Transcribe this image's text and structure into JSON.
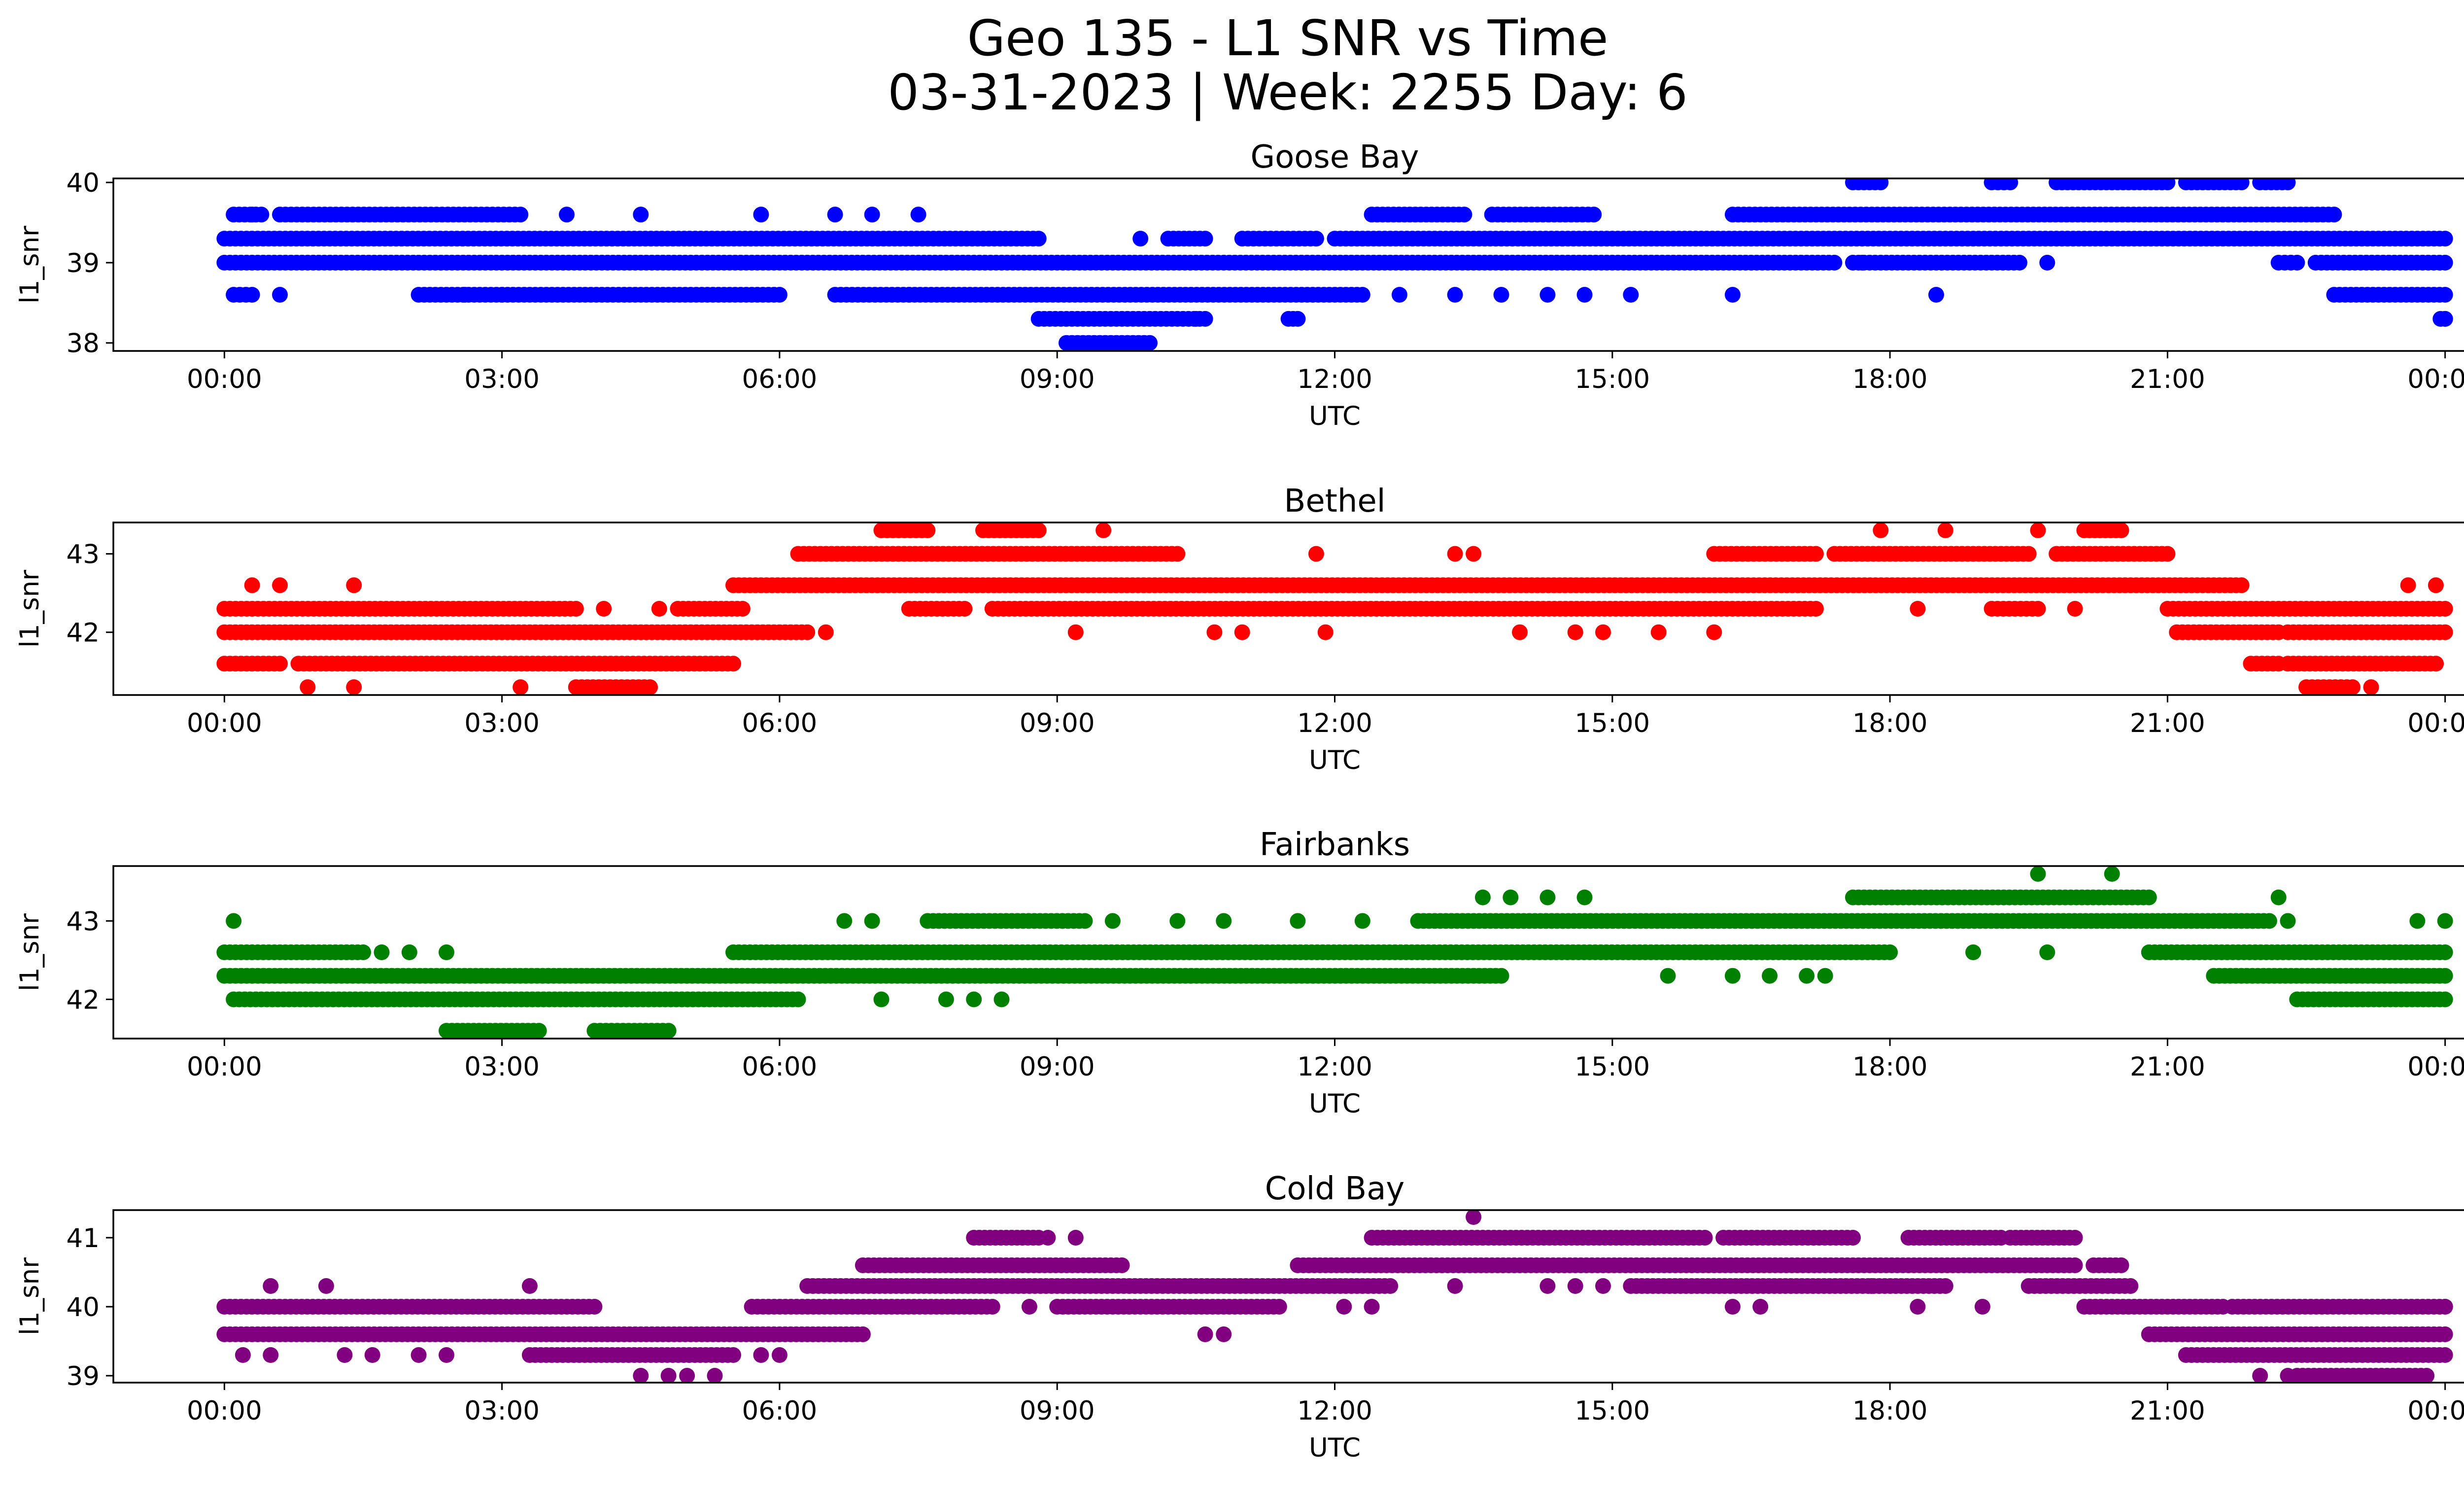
{
  "figure": {
    "title_line1": "Geo 135 - L1 SNR vs Time",
    "title_line2": "03-31-2023 | Week: 2255 Day: 6"
  },
  "chart_data": [
    {
      "type": "scatter",
      "title": "Goose Bay",
      "xlabel": "UTC",
      "ylabel": "l1_snr",
      "color": "#0000ff",
      "x_unit": "hours UTC",
      "xlim": [
        -1.2,
        25.2
      ],
      "ylim": [
        37.9,
        40.05
      ],
      "xticks": [
        0,
        3,
        6,
        9,
        12,
        15,
        18,
        21,
        24
      ],
      "xtick_labels": [
        "00:00",
        "03:00",
        "06:00",
        "09:00",
        "12:00",
        "15:00",
        "18:00",
        "21:00",
        "00:00"
      ],
      "yticks": [
        38,
        39,
        40
      ],
      "ytick_labels": [
        "38",
        "39",
        "40"
      ],
      "bands": [
        {
          "y": 40.0,
          "segments": [
            [
              17.6,
              17.9
            ],
            [
              19.1,
              19.3
            ],
            [
              19.8,
              21.0
            ],
            [
              21.2,
              21.8
            ],
            [
              22.0,
              22.3
            ]
          ]
        },
        {
          "y": 39.6,
          "segments": [
            [
              0.1,
              0.4
            ],
            [
              0.6,
              3.2
            ],
            [
              12.4,
              13.4
            ],
            [
              13.7,
              14.8
            ],
            [
              16.3,
              22.8
            ]
          ]
        },
        {
          "y": 39.3,
          "segments": [
            [
              0.0,
              8.8
            ],
            [
              10.2,
              10.6
            ],
            [
              11.0,
              11.8
            ],
            [
              12.0,
              24.0
            ]
          ]
        },
        {
          "y": 39.0,
          "segments": [
            [
              0.0,
              17.4
            ],
            [
              17.6,
              19.4
            ],
            [
              22.2,
              22.4
            ],
            [
              22.6,
              24.0
            ]
          ]
        },
        {
          "y": 38.6,
          "segments": [
            [
              0.1,
              0.3
            ],
            [
              2.1,
              6.0
            ],
            [
              6.6,
              7.4
            ],
            [
              7.4,
              12.3
            ],
            [
              22.8,
              24.0
            ]
          ]
        },
        {
          "y": 38.3,
          "segments": [
            [
              8.8,
              10.6
            ],
            [
              11.5,
              11.6
            ],
            [
              24.0,
              24.0
            ]
          ]
        },
        {
          "y": 38.0,
          "segments": [
            [
              9.1,
              10.0
            ]
          ]
        }
      ],
      "scatter_points": [
        {
          "x": 0.3,
          "y": 39.6
        },
        {
          "x": 4.5,
          "y": 39.6
        },
        {
          "x": 3.7,
          "y": 39.6
        },
        {
          "x": 5.8,
          "y": 39.6
        },
        {
          "x": 6.6,
          "y": 39.6
        },
        {
          "x": 7.0,
          "y": 39.6
        },
        {
          "x": 7.5,
          "y": 39.6
        },
        {
          "x": 0.6,
          "y": 38.6
        },
        {
          "x": 2.6,
          "y": 38.6
        },
        {
          "x": 3.0,
          "y": 38.6
        },
        {
          "x": 12.7,
          "y": 38.6
        },
        {
          "x": 13.3,
          "y": 38.6
        },
        {
          "x": 13.8,
          "y": 38.6
        },
        {
          "x": 14.3,
          "y": 38.6
        },
        {
          "x": 14.7,
          "y": 38.6
        },
        {
          "x": 15.2,
          "y": 38.6
        },
        {
          "x": 16.3,
          "y": 38.6
        },
        {
          "x": 18.5,
          "y": 38.6
        },
        {
          "x": 9.9,
          "y": 39.3
        },
        {
          "x": 19.7,
          "y": 39.0
        },
        {
          "x": 17.7,
          "y": 39.0
        },
        {
          "x": 23.95,
          "y": 38.3
        },
        {
          "x": 10.5,
          "y": 38.3
        }
      ]
    },
    {
      "type": "scatter",
      "title": "Bethel",
      "xlabel": "UTC",
      "ylabel": "l1_snr",
      "color": "#ff0000",
      "x_unit": "hours UTC",
      "xlim": [
        -1.2,
        25.2
      ],
      "ylim": [
        41.2,
        43.4
      ],
      "xticks": [
        0,
        3,
        6,
        9,
        12,
        15,
        18,
        21,
        24
      ],
      "xtick_labels": [
        "00:00",
        "03:00",
        "06:00",
        "09:00",
        "12:00",
        "15:00",
        "18:00",
        "21:00",
        "00:00"
      ],
      "yticks": [
        42,
        43
      ],
      "ytick_labels": [
        "42",
        "43"
      ],
      "bands": [
        {
          "y": 43.3,
          "segments": [
            [
              7.1,
              7.6
            ],
            [
              8.2,
              8.8
            ],
            [
              20.1,
              20.5
            ]
          ]
        },
        {
          "y": 43.0,
          "segments": [
            [
              6.2,
              10.3
            ],
            [
              16.1,
              17.2
            ],
            [
              17.4,
              19.5
            ],
            [
              19.8,
              21.0
            ]
          ]
        },
        {
          "y": 42.6,
          "segments": [
            [
              5.5,
              21.8
            ]
          ]
        },
        {
          "y": 42.3,
          "segments": [
            [
              0.0,
              3.8
            ],
            [
              4.9,
              5.6
            ],
            [
              7.4,
              8.0
            ],
            [
              8.3,
              17.2
            ],
            [
              19.1,
              19.6
            ],
            [
              21.0,
              24.0
            ]
          ]
        },
        {
          "y": 42.0,
          "segments": [
            [
              0.0,
              6.3
            ],
            [
              21.1,
              22.2
            ],
            [
              22.3,
              24.0
            ]
          ]
        },
        {
          "y": 41.6,
          "segments": [
            [
              0.0,
              0.6
            ],
            [
              0.8,
              5.5
            ],
            [
              21.9,
              22.2
            ],
            [
              22.3,
              23.9
            ]
          ]
        },
        {
          "y": 41.3,
          "segments": [
            [
              3.8,
              4.6
            ],
            [
              22.5,
              23.0
            ]
          ]
        }
      ],
      "scatter_points": [
        {
          "x": 0.3,
          "y": 42.6
        },
        {
          "x": 0.6,
          "y": 42.6
        },
        {
          "x": 1.4,
          "y": 42.6
        },
        {
          "x": 23.6,
          "y": 42.6
        },
        {
          "x": 23.9,
          "y": 42.6
        },
        {
          "x": 4.1,
          "y": 42.3
        },
        {
          "x": 4.7,
          "y": 42.3
        },
        {
          "x": 18.3,
          "y": 42.3
        },
        {
          "x": 20.0,
          "y": 42.3
        },
        {
          "x": 6.5,
          "y": 42.0
        },
        {
          "x": 9.2,
          "y": 42.0
        },
        {
          "x": 10.7,
          "y": 42.0
        },
        {
          "x": 11.0,
          "y": 42.0
        },
        {
          "x": 11.9,
          "y": 42.0
        },
        {
          "x": 14.0,
          "y": 42.0
        },
        {
          "x": 14.6,
          "y": 42.0
        },
        {
          "x": 14.9,
          "y": 42.0
        },
        {
          "x": 15.5,
          "y": 42.0
        },
        {
          "x": 16.1,
          "y": 42.0
        },
        {
          "x": 0.9,
          "y": 41.3
        },
        {
          "x": 1.4,
          "y": 41.3
        },
        {
          "x": 3.2,
          "y": 41.3
        },
        {
          "x": 23.2,
          "y": 41.3
        },
        {
          "x": 23.9,
          "y": 41.6
        },
        {
          "x": 11.8,
          "y": 43.0
        },
        {
          "x": 13.3,
          "y": 43.0
        },
        {
          "x": 13.5,
          "y": 43.0
        },
        {
          "x": 9.5,
          "y": 43.3
        },
        {
          "x": 17.9,
          "y": 43.3
        },
        {
          "x": 18.6,
          "y": 43.3
        },
        {
          "x": 19.6,
          "y": 43.3
        }
      ]
    },
    {
      "type": "scatter",
      "title": "Fairbanks",
      "xlabel": "UTC",
      "ylabel": "l1_snr",
      "color": "#008000",
      "x_unit": "hours UTC",
      "xlim": [
        -1.2,
        25.2
      ],
      "ylim": [
        41.5,
        43.7
      ],
      "xticks": [
        0,
        3,
        6,
        9,
        12,
        15,
        18,
        21,
        24
      ],
      "xtick_labels": [
        "00:00",
        "03:00",
        "06:00",
        "09:00",
        "12:00",
        "15:00",
        "18:00",
        "21:00",
        "00:00"
      ],
      "yticks": [
        42,
        43
      ],
      "ytick_labels": [
        "42",
        "43"
      ],
      "bands": [
        {
          "y": 43.3,
          "segments": [
            [
              17.6,
              20.8
            ]
          ]
        },
        {
          "y": 43.0,
          "segments": [
            [
              7.6,
              9.3
            ],
            [
              12.9,
              22.1
            ]
          ]
        },
        {
          "y": 42.6,
          "segments": [
            [
              0.0,
              1.5
            ],
            [
              5.5,
              18.0
            ],
            [
              20.8,
              24.0
            ]
          ]
        },
        {
          "y": 42.3,
          "segments": [
            [
              0.0,
              3.5
            ],
            [
              3.5,
              13.8
            ],
            [
              21.5,
              24.0
            ]
          ]
        },
        {
          "y": 42.0,
          "segments": [
            [
              0.1,
              6.2
            ],
            [
              22.4,
              24.0
            ]
          ]
        },
        {
          "y": 41.6,
          "segments": [
            [
              2.4,
              3.4
            ],
            [
              4.0,
              4.8
            ]
          ]
        }
      ],
      "scatter_points": [
        {
          "x": 0.1,
          "y": 43.0
        },
        {
          "x": 6.7,
          "y": 43.0
        },
        {
          "x": 7.0,
          "y": 43.0
        },
        {
          "x": 9.6,
          "y": 43.0
        },
        {
          "x": 10.3,
          "y": 43.0
        },
        {
          "x": 10.8,
          "y": 43.0
        },
        {
          "x": 11.6,
          "y": 43.0
        },
        {
          "x": 12.3,
          "y": 43.0
        },
        {
          "x": 22.3,
          "y": 43.0
        },
        {
          "x": 23.7,
          "y": 43.0
        },
        {
          "x": 24.0,
          "y": 43.0
        },
        {
          "x": 13.6,
          "y": 43.3
        },
        {
          "x": 13.9,
          "y": 43.3
        },
        {
          "x": 14.3,
          "y": 43.3
        },
        {
          "x": 14.7,
          "y": 43.3
        },
        {
          "x": 22.2,
          "y": 43.3
        },
        {
          "x": 19.6,
          "y": 43.6
        },
        {
          "x": 20.4,
          "y": 43.6
        },
        {
          "x": 1.7,
          "y": 42.6
        },
        {
          "x": 2.0,
          "y": 42.6
        },
        {
          "x": 2.4,
          "y": 42.6
        },
        {
          "x": 18.9,
          "y": 42.6
        },
        {
          "x": 19.7,
          "y": 42.6
        },
        {
          "x": 15.6,
          "y": 42.3
        },
        {
          "x": 16.3,
          "y": 42.3
        },
        {
          "x": 16.7,
          "y": 42.3
        },
        {
          "x": 17.1,
          "y": 42.3
        },
        {
          "x": 17.3,
          "y": 42.3
        },
        {
          "x": 7.1,
          "y": 42.0
        },
        {
          "x": 7.8,
          "y": 42.0
        },
        {
          "x": 8.1,
          "y": 42.0
        },
        {
          "x": 8.4,
          "y": 42.0
        }
      ]
    },
    {
      "type": "scatter",
      "title": "Cold Bay",
      "xlabel": "UTC",
      "ylabel": "l1_snr",
      "color": "#800080",
      "x_unit": "hours UTC",
      "xlim": [
        -1.2,
        25.2
      ],
      "ylim": [
        38.9,
        41.4
      ],
      "xticks": [
        0,
        3,
        6,
        9,
        12,
        15,
        18,
        21,
        24
      ],
      "xtick_labels": [
        "00:00",
        "03:00",
        "06:00",
        "09:00",
        "12:00",
        "15:00",
        "18:00",
        "21:00",
        "00:00"
      ],
      "yticks": [
        39,
        40,
        41
      ],
      "ytick_labels": [
        "39",
        "40",
        "41"
      ],
      "bands": [
        {
          "y": 41.0,
          "segments": [
            [
              8.1,
              8.8
            ],
            [
              12.4,
              16.0
            ],
            [
              16.2,
              17.6
            ],
            [
              18.2,
              19.2
            ],
            [
              19.3,
              20.0
            ]
          ]
        },
        {
          "y": 40.6,
          "segments": [
            [
              6.9,
              9.7
            ],
            [
              11.6,
              20.0
            ],
            [
              20.2,
              20.5
            ]
          ]
        },
        {
          "y": 40.3,
          "segments": [
            [
              6.3,
              12.6
            ],
            [
              15.2,
              18.6
            ],
            [
              19.5,
              20.6
            ]
          ]
        },
        {
          "y": 40.0,
          "segments": [
            [
              0.0,
              4.0
            ],
            [
              5.7,
              8.3
            ],
            [
              9.0,
              11.4
            ],
            [
              20.1,
              21.6
            ],
            [
              21.7,
              24.0
            ]
          ]
        },
        {
          "y": 39.6,
          "segments": [
            [
              0.0,
              6.9
            ],
            [
              20.8,
              24.0
            ]
          ]
        },
        {
          "y": 39.3,
          "segments": [
            [
              3.3,
              5.5
            ],
            [
              21.2,
              24.0
            ]
          ]
        },
        {
          "y": 39.0,
          "segments": [
            [
              22.4,
              23.8
            ]
          ]
        }
      ],
      "scatter_points": [
        {
          "x": 0.5,
          "y": 40.3
        },
        {
          "x": 1.1,
          "y": 40.3
        },
        {
          "x": 3.3,
          "y": 40.3
        },
        {
          "x": 13.3,
          "y": 40.3
        },
        {
          "x": 14.3,
          "y": 40.3
        },
        {
          "x": 14.6,
          "y": 40.3
        },
        {
          "x": 14.9,
          "y": 40.3
        },
        {
          "x": 17.8,
          "y": 40.3
        },
        {
          "x": 13.5,
          "y": 41.3
        },
        {
          "x": 8.9,
          "y": 41.0
        },
        {
          "x": 9.2,
          "y": 41.0
        },
        {
          "x": 8.7,
          "y": 40.0
        },
        {
          "x": 12.1,
          "y": 40.0
        },
        {
          "x": 12.4,
          "y": 40.0
        },
        {
          "x": 16.3,
          "y": 40.0
        },
        {
          "x": 16.6,
          "y": 40.0
        },
        {
          "x": 18.3,
          "y": 40.0
        },
        {
          "x": 19.0,
          "y": 40.0
        },
        {
          "x": 24.0,
          "y": 40.0
        },
        {
          "x": 0.2,
          "y": 39.3
        },
        {
          "x": 0.5,
          "y": 39.3
        },
        {
          "x": 1.3,
          "y": 39.3
        },
        {
          "x": 1.6,
          "y": 39.3
        },
        {
          "x": 2.1,
          "y": 39.3
        },
        {
          "x": 2.4,
          "y": 39.3
        },
        {
          "x": 5.8,
          "y": 39.3
        },
        {
          "x": 6.0,
          "y": 39.3
        },
        {
          "x": 10.6,
          "y": 39.6
        },
        {
          "x": 10.8,
          "y": 39.6
        },
        {
          "x": 4.5,
          "y": 39.0
        },
        {
          "x": 4.8,
          "y": 39.0
        },
        {
          "x": 5.0,
          "y": 39.0
        },
        {
          "x": 5.3,
          "y": 39.0
        },
        {
          "x": 22.0,
          "y": 39.0
        },
        {
          "x": 22.3,
          "y": 39.0
        }
      ]
    }
  ]
}
